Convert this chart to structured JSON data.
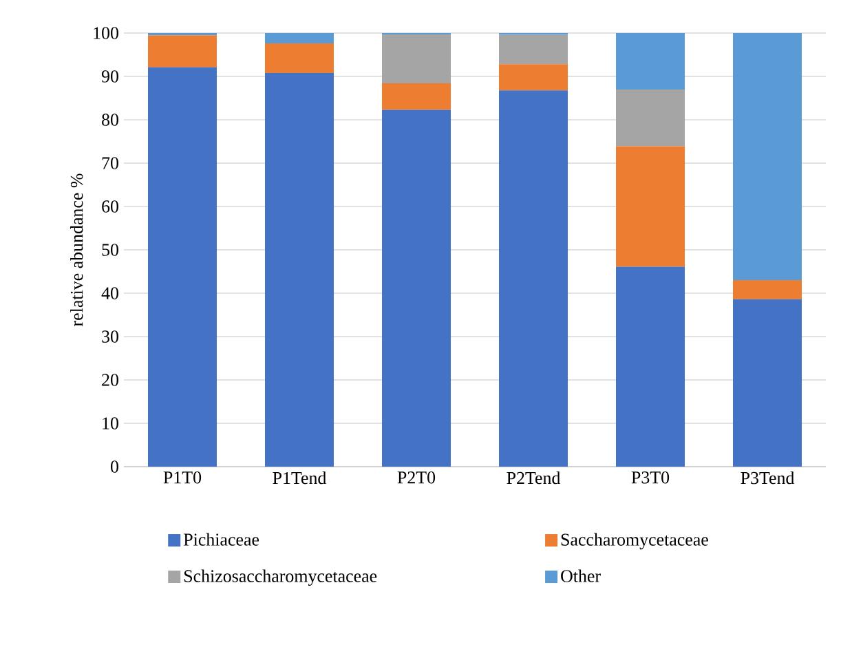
{
  "chart_data": {
    "type": "bar",
    "stacked": true,
    "ylabel": "relative abundance %",
    "categories": [
      "P1T0",
      "P1Tend",
      "P2T0",
      "P2Tend",
      "P3T0",
      "P3Tend"
    ],
    "series": [
      {
        "name": "Pichiaceae",
        "color": "#4472c4",
        "values": [
          92.1,
          90.8,
          82.3,
          86.8,
          46.1,
          38.6
        ]
      },
      {
        "name": "Saccharomycetaceae",
        "color": "#ed7d31",
        "values": [
          7.4,
          6.8,
          6.1,
          6.0,
          27.8,
          4.4
        ]
      },
      {
        "name": "Schizosaccharomycetaceae",
        "color": "#a5a5a5",
        "values": [
          0,
          0,
          11.3,
          6.8,
          13.1,
          null
        ]
      },
      {
        "name": "Other",
        "color": "#5b9bd5",
        "values": [
          0.5,
          2.4,
          0.3,
          0.4,
          13.0,
          57.0
        ]
      }
    ],
    "ylim": [
      0,
      100
    ],
    "yticks": [
      0,
      10,
      20,
      30,
      40,
      50,
      60,
      70,
      80,
      90,
      100
    ],
    "grid": "y",
    "legend": "bottom"
  }
}
